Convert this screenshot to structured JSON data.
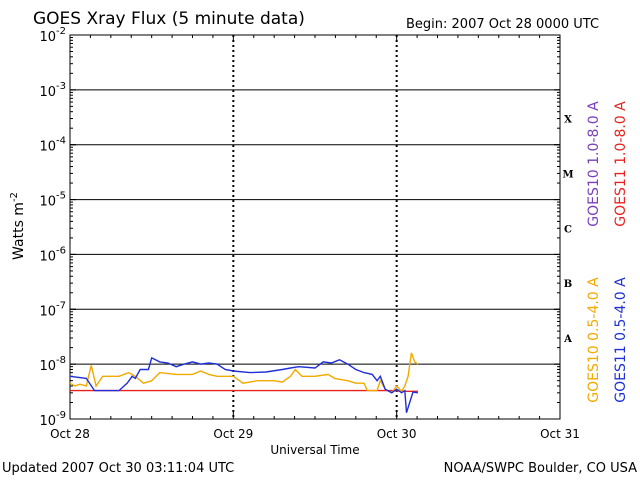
{
  "chart_data": {
    "type": "line",
    "title": "GOES Xray Flux (5 minute data)",
    "begin_label": "Begin:  2007 Oct 28 0000 UTC",
    "xlabel": "Universal Time",
    "ylabel_base": "Watts m",
    "ylabel_exp": "-2",
    "y_scale": "log",
    "ylim": [
      1e-09,
      0.01
    ],
    "x_ticks": [
      "Oct 28",
      "Oct 29",
      "Oct 30",
      "Oct 31"
    ],
    "x_range_days": [
      0,
      3
    ],
    "y_ticks": [
      {
        "base": "10",
        "exp": "-2",
        "value": 0.01
      },
      {
        "base": "10",
        "exp": "-3",
        "value": 0.001
      },
      {
        "base": "10",
        "exp": "-4",
        "value": 0.0001
      },
      {
        "base": "10",
        "exp": "-5",
        "value": 1e-05
      },
      {
        "base": "10",
        "exp": "-6",
        "value": 1e-06
      },
      {
        "base": "10",
        "exp": "-7",
        "value": 1e-07
      },
      {
        "base": "10",
        "exp": "-8",
        "value": 1e-08
      },
      {
        "base": "10",
        "exp": "-9",
        "value": 1e-09
      }
    ],
    "flare_classes": [
      {
        "label": "X",
        "value": 0.0003
      },
      {
        "label": "M",
        "value": 3e-05
      },
      {
        "label": "C",
        "value": 3e-06
      },
      {
        "label": "B",
        "value": 3e-07
      },
      {
        "label": "A",
        "value": 3e-08
      }
    ],
    "grid": "horizontal lines at each decade from 1e-8 to 1e-3",
    "legend_right": [
      {
        "text": "GOES10 1.0-8.0 A",
        "color": "#7a3fbf"
      },
      {
        "text": "GOES11 1.0-8.0 A",
        "color": "#e8231f"
      }
    ],
    "legend_bottom": [
      {
        "text": "GOES10 0.5-4.0 A",
        "color": "#f2a900"
      },
      {
        "text": "GOES11 0.5-4.0 A",
        "color": "#1f30d8"
      }
    ],
    "series": [
      {
        "name": "GOES11 1.0-8.0 A",
        "color": "#e8231f",
        "points": [
          [
            0.0,
            3.3e-09
          ],
          [
            0.3,
            3.3e-09
          ],
          [
            1.0,
            3.3e-09
          ],
          [
            1.5,
            3.3e-09
          ],
          [
            1.98,
            3.3e-09
          ],
          [
            2.06,
            3.2e-09
          ],
          [
            2.13,
            3.2e-09
          ]
        ]
      },
      {
        "name": "GOES10 0.5-4.0 A",
        "color": "#f2a900",
        "points": [
          [
            0.0,
            4.5e-09
          ],
          [
            0.03,
            4e-09
          ],
          [
            0.06,
            4.3e-09
          ],
          [
            0.1,
            4e-09
          ],
          [
            0.13,
            9.5e-09
          ],
          [
            0.16,
            4e-09
          ],
          [
            0.2,
            6e-09
          ],
          [
            0.3,
            6e-09
          ],
          [
            0.36,
            7e-09
          ],
          [
            0.4,
            6e-09
          ],
          [
            0.45,
            4.5e-09
          ],
          [
            0.5,
            5e-09
          ],
          [
            0.55,
            7e-09
          ],
          [
            0.65,
            6.5e-09
          ],
          [
            0.75,
            6.5e-09
          ],
          [
            0.8,
            7.5e-09
          ],
          [
            0.85,
            6.5e-09
          ],
          [
            0.9,
            6e-09
          ],
          [
            1.0,
            6e-09
          ],
          [
            1.06,
            4.5e-09
          ],
          [
            1.15,
            5e-09
          ],
          [
            1.25,
            5e-09
          ],
          [
            1.3,
            4.7e-09
          ],
          [
            1.35,
            6e-09
          ],
          [
            1.38,
            8e-09
          ],
          [
            1.42,
            6e-09
          ],
          [
            1.5,
            6e-09
          ],
          [
            1.58,
            6.5e-09
          ],
          [
            1.62,
            5.5e-09
          ],
          [
            1.7,
            5e-09
          ],
          [
            1.75,
            4.5e-09
          ],
          [
            1.8,
            4.5e-09
          ],
          [
            1.82,
            3.3e-09
          ],
          [
            1.88,
            3.3e-09
          ],
          [
            1.9,
            5e-09
          ],
          [
            1.93,
            3.5e-09
          ],
          [
            1.97,
            3e-09
          ],
          [
            2.0,
            4e-09
          ],
          [
            2.03,
            3.2e-09
          ],
          [
            2.05,
            4e-09
          ],
          [
            2.07,
            6e-09
          ],
          [
            2.09,
            1.6e-08
          ],
          [
            2.11,
            1.1e-08
          ],
          [
            2.13,
            1e-08
          ]
        ]
      },
      {
        "name": "GOES11 0.5-4.0 A",
        "color": "#1f30d8",
        "points": [
          [
            0.0,
            6e-09
          ],
          [
            0.1,
            5.5e-09
          ],
          [
            0.15,
            3.3e-09
          ],
          [
            0.22,
            3.3e-09
          ],
          [
            0.3,
            3.3e-09
          ],
          [
            0.35,
            4.5e-09
          ],
          [
            0.38,
            6e-09
          ],
          [
            0.4,
            5.5e-09
          ],
          [
            0.43,
            8e-09
          ],
          [
            0.48,
            8e-09
          ],
          [
            0.5,
            1.3e-08
          ],
          [
            0.55,
            1.1e-08
          ],
          [
            0.6,
            1.05e-08
          ],
          [
            0.65,
            9e-09
          ],
          [
            0.7,
            1e-08
          ],
          [
            0.75,
            1.1e-08
          ],
          [
            0.8,
            1e-08
          ],
          [
            0.85,
            1.05e-08
          ],
          [
            0.9,
            1e-08
          ],
          [
            0.95,
            8e-09
          ],
          [
            1.0,
            7.5e-09
          ],
          [
            1.1,
            7e-09
          ],
          [
            1.2,
            7.2e-09
          ],
          [
            1.3,
            8e-09
          ],
          [
            1.35,
            8.5e-09
          ],
          [
            1.4,
            9e-09
          ],
          [
            1.5,
            8.5e-09
          ],
          [
            1.55,
            1.1e-08
          ],
          [
            1.6,
            1.05e-08
          ],
          [
            1.65,
            1.2e-08
          ],
          [
            1.7,
            1e-08
          ],
          [
            1.75,
            8e-09
          ],
          [
            1.8,
            7e-09
          ],
          [
            1.85,
            6.5e-09
          ],
          [
            1.88,
            5e-09
          ],
          [
            1.9,
            6e-09
          ],
          [
            1.93,
            3.5e-09
          ],
          [
            1.97,
            3e-09
          ],
          [
            2.0,
            3.5e-09
          ],
          [
            2.03,
            3e-09
          ],
          [
            2.05,
            3.3e-09
          ],
          [
            2.06,
            1.3e-09
          ],
          [
            2.08,
            2e-09
          ],
          [
            2.1,
            3.1e-09
          ],
          [
            2.13,
            3e-09
          ]
        ]
      }
    ]
  },
  "footer": {
    "updated": "Updated 2007 Oct 30 03:11:04 UTC",
    "credit": "NOAA/SWPC Boulder, CO USA"
  }
}
